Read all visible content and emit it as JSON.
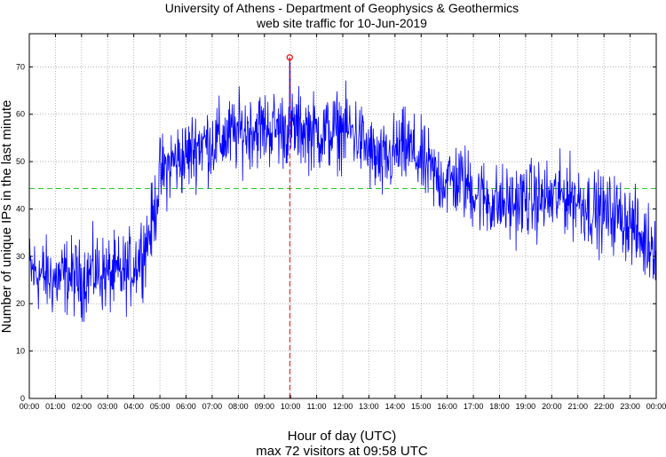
{
  "chart_data": {
    "type": "line",
    "title": "University of Athens - Department of Geophysics & Geothermics",
    "subtitle": "web site traffic for 10-Jun-2019",
    "xlabel": "Hour of day (UTC)",
    "ylabel": "Number of unique IPs in the last minute",
    "footer": "max 72 visitors at 09:58 UTC",
    "xlim": [
      0,
      24
    ],
    "ylim": [
      0,
      77
    ],
    "grid": true,
    "x_ticks": [
      "00:00",
      "01:00",
      "02:00",
      "03:00",
      "04:00",
      "05:00",
      "06:00",
      "07:00",
      "08:00",
      "09:00",
      "10:00",
      "11:00",
      "12:00",
      "13:00",
      "14:00",
      "15:00",
      "16:00",
      "17:00",
      "18:00",
      "19:00",
      "20:00",
      "21:00",
      "22:00",
      "23:00",
      "00:00"
    ],
    "y_ticks": [
      0,
      10,
      20,
      30,
      40,
      50,
      60,
      70
    ],
    "series": [
      {
        "color": "#0000ff",
        "x": [
          0,
          0.5,
          1,
          1.5,
          2,
          2.5,
          3,
          3.5,
          4,
          4.5,
          4.75,
          5,
          5.5,
          6,
          6.5,
          7,
          7.5,
          8,
          8.5,
          9,
          9.5,
          9.97,
          10.5,
          11,
          11.5,
          12,
          12.5,
          13,
          13.5,
          14,
          14.5,
          15,
          15.5,
          16,
          16.5,
          17,
          17.5,
          18,
          18.5,
          19,
          19.5,
          20,
          20.5,
          21,
          21.5,
          22,
          22.5,
          23,
          23.5,
          24
        ],
        "y": [
          27,
          26,
          25,
          26,
          25,
          27,
          26,
          26,
          28,
          33,
          38,
          47,
          50,
          51,
          54,
          54,
          55,
          56,
          57,
          57,
          57,
          72,
          57,
          56,
          56,
          57,
          56,
          52,
          49,
          52,
          53,
          50,
          47,
          46,
          46,
          44,
          42,
          41,
          41,
          42,
          42,
          42,
          43,
          42,
          40,
          39,
          39,
          37,
          33,
          33
        ]
      }
    ],
    "mean_line": {
      "y": 44.3,
      "color": "#22cc22"
    },
    "max_marker": {
      "x": 9.97,
      "y": 72,
      "color": "#ff0000"
    }
  }
}
